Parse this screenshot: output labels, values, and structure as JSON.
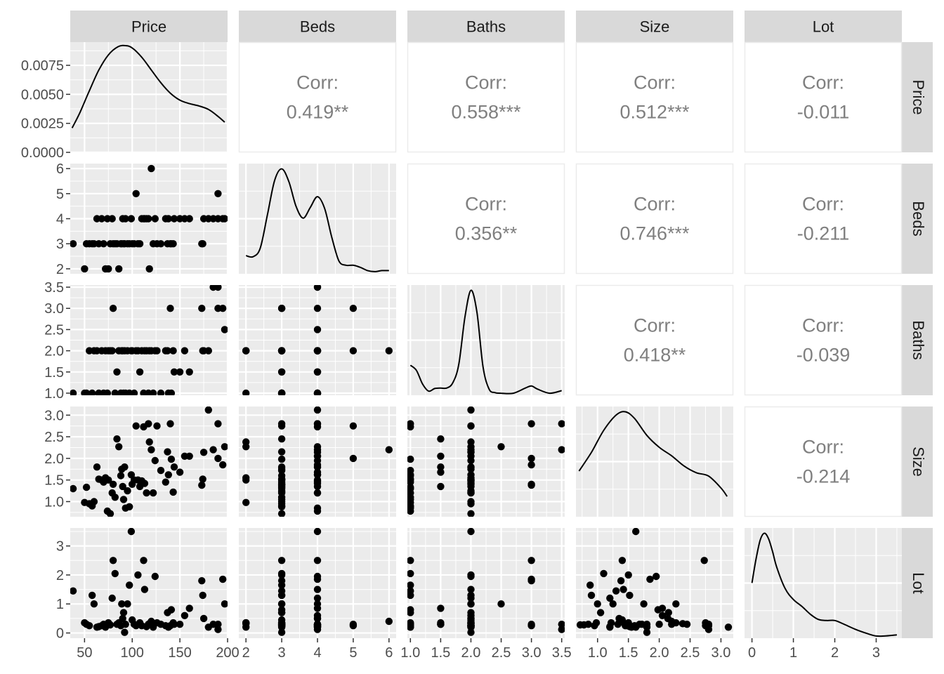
{
  "chart_data": {
    "type": "scatter",
    "title": "",
    "variables": [
      {
        "name": "Price",
        "range": [
          35,
          200
        ],
        "ticks": [
          50,
          100,
          150,
          200
        ],
        "tick_labels": [
          "50",
          "100",
          "150",
          "200"
        ],
        "density_ticks": [
          0,
          0.0025,
          0.005,
          0.0075
        ],
        "density_tick_labels": [
          "0.0000",
          "0.0025",
          "0.0050",
          "0.0075"
        ],
        "density_max": 0.0095
      },
      {
        "name": "Beds",
        "range": [
          1.8,
          6.2
        ],
        "ticks": [
          2,
          3,
          4,
          5,
          6
        ],
        "tick_labels": [
          "2",
          "3",
          "4",
          "5",
          "6"
        ]
      },
      {
        "name": "Baths",
        "range": [
          0.95,
          3.55
        ],
        "ticks": [
          1.0,
          1.5,
          2.0,
          2.5,
          3.0,
          3.5
        ],
        "tick_labels": [
          "1.0",
          "1.5",
          "2.0",
          "2.5",
          "3.0",
          "3.5"
        ]
      },
      {
        "name": "Size",
        "range": [
          0.65,
          3.2
        ],
        "ticks": [
          1.0,
          1.5,
          2.0,
          2.5,
          3.0
        ],
        "tick_labels": [
          "1.0",
          "1.5",
          "2.0",
          "2.5",
          "3.0"
        ]
      },
      {
        "name": "Lot",
        "range": [
          -0.18,
          3.62
        ],
        "ticks": [
          0,
          1,
          2,
          3
        ],
        "tick_labels": [
          "0",
          "1",
          "2",
          "3"
        ]
      }
    ],
    "correlations": [
      {
        "row": "Price",
        "col": "Beds",
        "label": "Corr:",
        "value": "0.419**"
      },
      {
        "row": "Price",
        "col": "Baths",
        "label": "Corr:",
        "value": "0.558***"
      },
      {
        "row": "Price",
        "col": "Size",
        "label": "Corr:",
        "value": "0.512***"
      },
      {
        "row": "Price",
        "col": "Lot",
        "label": "Corr:",
        "value": "-0.011"
      },
      {
        "row": "Beds",
        "col": "Baths",
        "label": "Corr:",
        "value": "0.356**"
      },
      {
        "row": "Beds",
        "col": "Size",
        "label": "Corr:",
        "value": "0.746***"
      },
      {
        "row": "Beds",
        "col": "Lot",
        "label": "Corr:",
        "value": "-0.211"
      },
      {
        "row": "Baths",
        "col": "Size",
        "label": "Corr:",
        "value": "0.418**"
      },
      {
        "row": "Baths",
        "col": "Lot",
        "label": "Corr:",
        "value": "-0.039"
      },
      {
        "row": "Size",
        "col": "Lot",
        "label": "Corr:",
        "value": "-0.214"
      }
    ],
    "observations": [
      [
        38,
        3,
        1.0,
        1.3,
        1.45
      ],
      [
        50,
        2,
        1.0,
        0.98,
        0.35
      ],
      [
        52,
        3,
        1.0,
        1.33,
        0.3
      ],
      [
        55,
        3,
        2.0,
        0.95,
        0.25
      ],
      [
        58,
        3,
        1.0,
        0.9,
        1.3
      ],
      [
        60,
        3,
        2.0,
        1.0,
        1.0
      ],
      [
        63,
        4,
        2.0,
        1.8,
        0.2
      ],
      [
        65,
        3,
        1.0,
        1.52,
        0.22
      ],
      [
        68,
        4,
        2.0,
        1.5,
        0.25
      ],
      [
        70,
        3,
        1.0,
        1.45,
        0.3
      ],
      [
        72,
        2,
        2.0,
        1.55,
        0.2
      ],
      [
        74,
        4,
        1.0,
        0.78,
        0.28
      ],
      [
        75,
        2,
        2.0,
        1.5,
        0.35
      ],
      [
        77,
        3,
        2.0,
        0.72,
        0.28
      ],
      [
        79,
        4,
        2.0,
        1.2,
        1.2
      ],
      [
        80,
        3,
        3.0,
        1.4,
        2.5
      ],
      [
        82,
        3,
        1.0,
        1.1,
        2.05
      ],
      [
        84,
        3,
        1.5,
        2.45,
        0.3
      ],
      [
        86,
        2,
        2.0,
        2.27,
        0.35
      ],
      [
        88,
        3,
        1.0,
        1.6,
        0.25
      ],
      [
        89,
        3,
        2.0,
        1.75,
        1.0
      ],
      [
        90,
        4,
        2.0,
        1.35,
        0.5
      ],
      [
        91,
        3,
        1.0,
        1.05,
        0.7
      ],
      [
        92,
        3,
        2.0,
        1.8,
        0.02
      ],
      [
        93,
        4,
        1.0,
        0.85,
        0.3
      ],
      [
        95,
        3,
        2.0,
        1.25,
        1.0
      ],
      [
        97,
        3,
        1.0,
        0.88,
        1.65
      ],
      [
        99,
        4,
        2.0,
        1.62,
        3.5
      ],
      [
        100,
        3,
        2.0,
        1.4,
        0.45
      ],
      [
        102,
        3,
        1.0,
        1.5,
        0.3
      ],
      [
        104,
        5,
        2.0,
        2.75,
        0.25
      ],
      [
        106,
        3,
        2.0,
        1.5,
        2.0
      ],
      [
        108,
        3,
        1.5,
        1.35,
        0.35
      ],
      [
        110,
        4,
        2.0,
        1.48,
        0.25
      ],
      [
        112,
        4,
        1.0,
        2.73,
        2.5
      ],
      [
        113,
        4,
        2.0,
        1.42,
        1.5
      ],
      [
        115,
        4,
        2.0,
        1.2,
        0.22
      ],
      [
        117,
        4,
        1.0,
        2.8,
        0.3
      ],
      [
        118,
        2,
        2.0,
        2.38,
        0.32
      ],
      [
        120,
        6,
        2.0,
        2.2,
        0.4
      ],
      [
        122,
        3,
        1.0,
        1.2,
        0.2
      ],
      [
        124,
        4,
        2.0,
        1.95,
        1.95
      ],
      [
        126,
        3,
        2.0,
        2.75,
        0.35
      ],
      [
        130,
        3,
        1.0,
        1.72,
        0.3
      ],
      [
        135,
        4,
        2.0,
        1.45,
        0.25
      ],
      [
        137,
        3,
        2.0,
        2.15,
        0.7
      ],
      [
        138,
        4,
        1.0,
        1.62,
        0.2
      ],
      [
        140,
        3,
        3.0,
        2.8,
        0.25
      ],
      [
        141,
        3,
        1.0,
        1.98,
        0.8
      ],
      [
        143,
        3,
        2.0,
        1.22,
        0.35
      ],
      [
        144,
        4,
        1.5,
        1.8,
        0.3
      ],
      [
        150,
        4,
        1.5,
        1.68,
        0.3
      ],
      [
        155,
        4,
        2.0,
        2.05,
        0.6
      ],
      [
        160,
        4,
        1.5,
        2.05,
        0.85
      ],
      [
        173,
        3,
        3.0,
        1.38,
        1.8
      ],
      [
        174,
        3,
        2.0,
        1.52,
        1.3
      ],
      [
        175,
        4,
        2.0,
        2.14,
        0.5
      ],
      [
        180,
        4,
        2.0,
        3.12,
        0.2
      ],
      [
        185,
        4,
        3.5,
        2.2,
        0.3
      ],
      [
        190,
        4,
        3.5,
        2.8,
        0.12
      ],
      [
        190,
        5,
        3.0,
        2.0,
        0.3
      ],
      [
        195,
        4,
        3.0,
        1.85,
        1.85
      ],
      [
        197,
        4,
        2.5,
        2.27,
        1.0
      ]
    ],
    "densities": [
      {
        "variable": "Price",
        "x": [
          37,
          45,
          55,
          65,
          75,
          85,
          93,
          100,
          110,
          120,
          130,
          140,
          150,
          160,
          170,
          180,
          190,
          197
        ],
        "y": [
          0.0021,
          0.0034,
          0.0053,
          0.0071,
          0.0084,
          0.0091,
          0.0092,
          0.009,
          0.0082,
          0.0071,
          0.006,
          0.0051,
          0.0045,
          0.0042,
          0.004,
          0.0037,
          0.0031,
          0.0026
        ]
      },
      {
        "variable": "Beds",
        "x": [
          2,
          2.2,
          2.4,
          2.6,
          2.8,
          3.0,
          3.2,
          3.4,
          3.6,
          3.8,
          4.0,
          4.2,
          4.4,
          4.6,
          4.8,
          5.0,
          5.2,
          5.4,
          5.6,
          5.8,
          6.0
        ],
        "y": [
          0.17,
          0.16,
          0.24,
          0.55,
          0.87,
          0.98,
          0.86,
          0.63,
          0.52,
          0.62,
          0.72,
          0.61,
          0.34,
          0.12,
          0.08,
          0.08,
          0.06,
          0.03,
          0.02,
          0.03,
          0.03
        ]
      },
      {
        "variable": "Baths",
        "x": [
          1.0,
          1.1,
          1.2,
          1.3,
          1.4,
          1.5,
          1.6,
          1.7,
          1.8,
          1.9,
          2.0,
          2.1,
          2.2,
          2.3,
          2.4,
          2.5,
          2.7,
          2.9,
          3.0,
          3.1,
          3.3,
          3.5
        ],
        "y": [
          0.58,
          0.48,
          0.22,
          0.08,
          0.13,
          0.14,
          0.14,
          0.24,
          0.6,
          1.5,
          2.03,
          1.6,
          0.55,
          0.12,
          0.05,
          0.04,
          0.04,
          0.14,
          0.18,
          0.12,
          0.04,
          0.09
        ]
      },
      {
        "variable": "Size",
        "x": [
          0.7,
          0.9,
          1.1,
          1.3,
          1.45,
          1.6,
          1.8,
          2.0,
          2.2,
          2.4,
          2.6,
          2.8,
          3.0,
          3.1
        ],
        "y": [
          0.27,
          0.38,
          0.51,
          0.6,
          0.62,
          0.58,
          0.48,
          0.41,
          0.36,
          0.3,
          0.26,
          0.24,
          0.17,
          0.12
        ]
      },
      {
        "variable": "Lot",
        "x": [
          0,
          0.1,
          0.2,
          0.3,
          0.4,
          0.5,
          0.6,
          0.8,
          1.0,
          1.2,
          1.4,
          1.6,
          1.8,
          2.0,
          2.2,
          2.5,
          2.8,
          3.0,
          3.2,
          3.5
        ],
        "y": [
          0.5,
          0.72,
          0.89,
          0.95,
          0.9,
          0.78,
          0.64,
          0.45,
          0.35,
          0.29,
          0.22,
          0.17,
          0.16,
          0.16,
          0.13,
          0.08,
          0.04,
          0.02,
          0.02,
          0.03
        ]
      }
    ]
  }
}
